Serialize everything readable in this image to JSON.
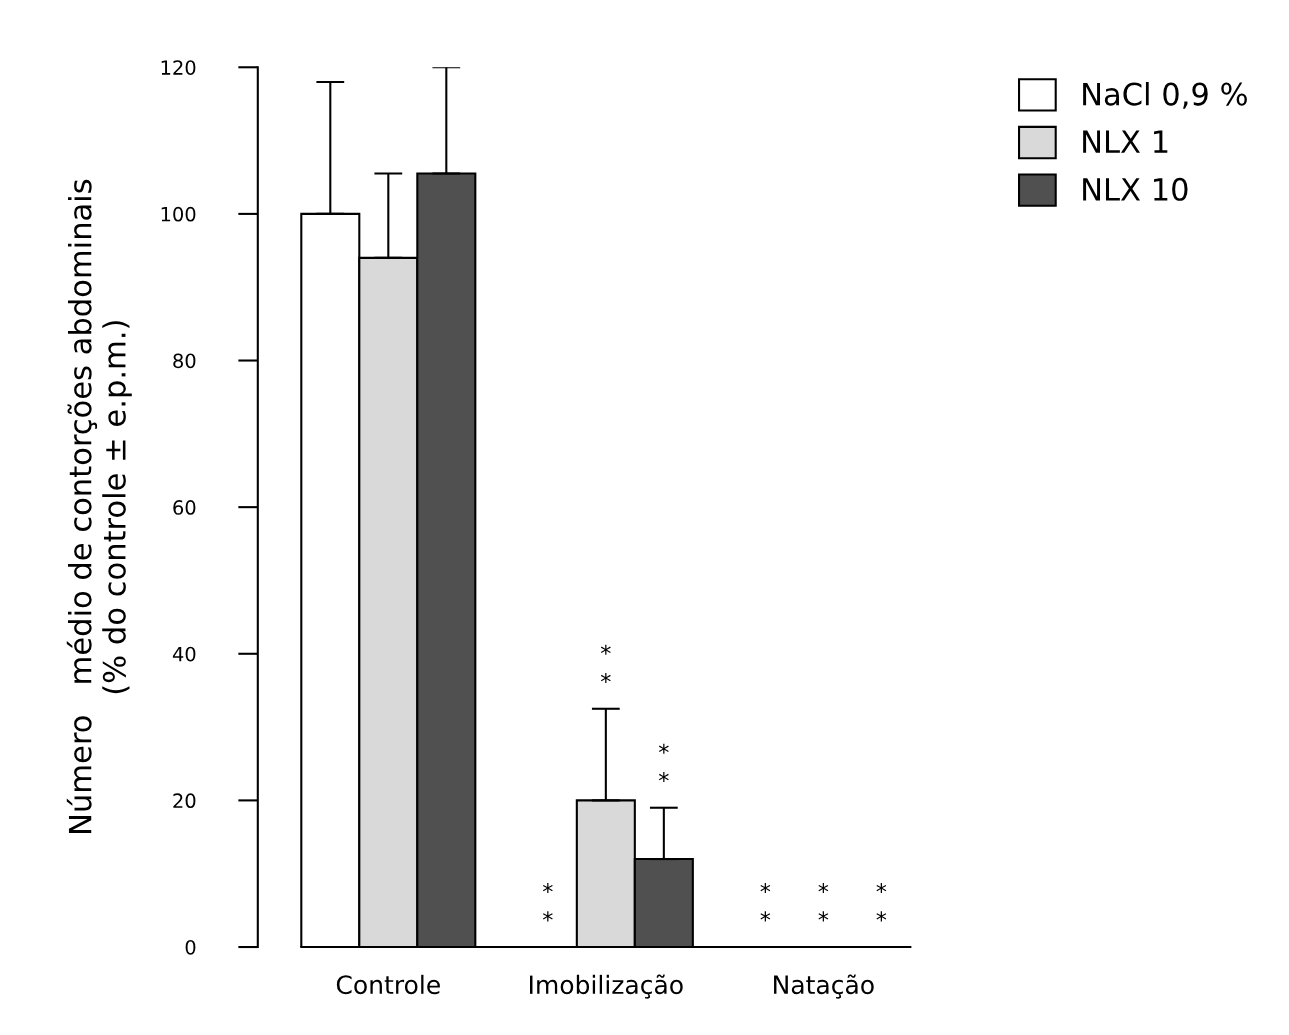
{
  "chart_data": {
    "type": "bar",
    "ylabel": "Número   médio de contorções abdominais\n(% do controle ± e.p.m.)",
    "categories": [
      "Controle",
      "Imobilização",
      "Natação"
    ],
    "series": [
      {
        "name": "NaCl 0,9 %",
        "color": "#ffffff",
        "values": [
          100,
          0,
          0
        ],
        "errors": [
          [
            100,
            118
          ],
          null,
          null
        ]
      },
      {
        "name": "NLX 1",
        "color": "#d9d9d9",
        "values": [
          94,
          20,
          0
        ],
        "errors": [
          [
            94,
            105.5
          ],
          [
            20,
            32.5
          ],
          null
        ]
      },
      {
        "name": "NLX 10",
        "color": "#505050",
        "values": [
          105.5,
          12,
          0
        ],
        "errors": [
          [
            105.5,
            120
          ],
          [
            12,
            19
          ],
          null
        ]
      }
    ],
    "annotations": [
      "*\n*",
      "*\n*",
      "*\n*",
      "*\n*",
      "*\n*",
      "*\n*"
    ],
    "ylim": [
      0,
      120
    ],
    "yticks": [
      0,
      20,
      40,
      60,
      80,
      100,
      120
    ],
    "grid": false,
    "legend": "top right"
  }
}
